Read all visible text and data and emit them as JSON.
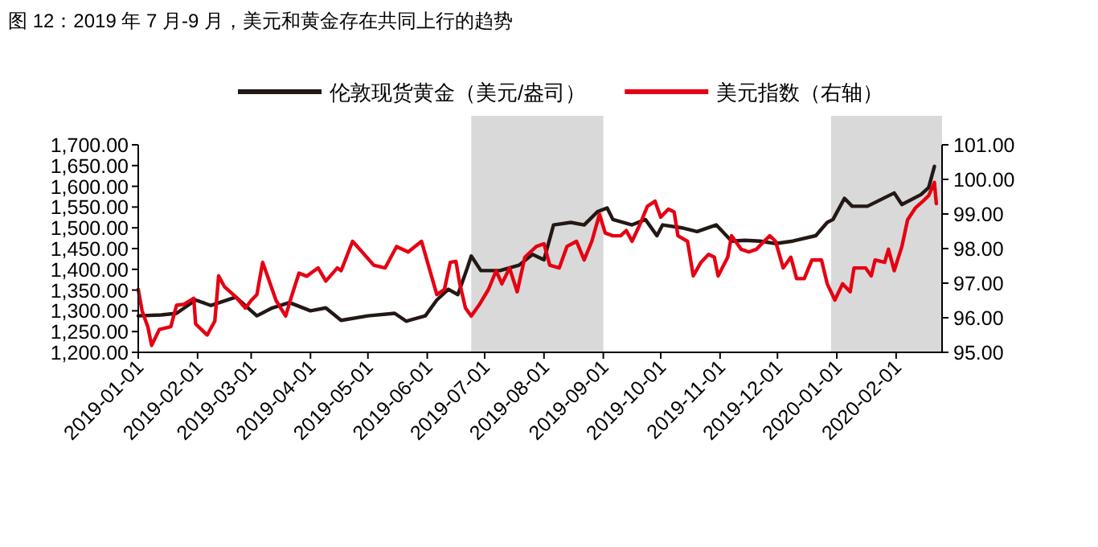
{
  "chart_data": {
    "type": "line",
    "title": "图 12：2019 年 7 月-9 月，美元和黄金存在共同上行的趋势",
    "legend": "top",
    "grid": false,
    "xlim": [
      "2019-01-01",
      "2020-02-25"
    ],
    "xticks": [
      "2019-01-01",
      "2019-02-01",
      "2019-03-01",
      "2019-04-01",
      "2019-05-01",
      "2019-06-01",
      "2019-07-01",
      "2019-08-01",
      "2019-09-01",
      "2019-10-01",
      "2019-11-01",
      "2019-12-01",
      "2020-01-01",
      "2020-02-01"
    ],
    "ylim": [
      1200,
      1700
    ],
    "yticks": [
      {
        "value": 1200,
        "label": "1,200.00"
      },
      {
        "value": 1250,
        "label": "1,250.00"
      },
      {
        "value": 1300,
        "label": "1,300.00"
      },
      {
        "value": 1350,
        "label": "1,350.00"
      },
      {
        "value": 1400,
        "label": "1,400.00"
      },
      {
        "value": 1450,
        "label": "1,450.00"
      },
      {
        "value": 1500,
        "label": "1,500.00"
      },
      {
        "value": 1550,
        "label": "1,550.00"
      },
      {
        "value": 1600,
        "label": "1,600.00"
      },
      {
        "value": 1650,
        "label": "1,650.00"
      },
      {
        "value": 1700,
        "label": "1,700.00"
      }
    ],
    "y2lim": [
      95,
      101
    ],
    "y2ticks": [
      {
        "value": 95,
        "label": "95.00"
      },
      {
        "value": 96,
        "label": "96.00"
      },
      {
        "value": 97,
        "label": "97.00"
      },
      {
        "value": 98,
        "label": "98.00"
      },
      {
        "value": 99,
        "label": "99.00"
      },
      {
        "value": 100,
        "label": "100.00"
      },
      {
        "value": 101,
        "label": "101.00"
      }
    ],
    "bands": [
      {
        "axis": "x",
        "from": "2019-06-24",
        "to": "2019-09-01",
        "color": "#d9d9d9"
      },
      {
        "axis": "x",
        "from": "2019-12-29",
        "to": "2020-02-25",
        "color": "#d9d9d9"
      }
    ],
    "series": [
      {
        "name": "伦敦现货黄金（美元/盎司）",
        "color": "#231815",
        "x": [
          "2019-01-01",
          "2019-01-13",
          "2019-01-21",
          "2019-01-31",
          "2019-02-08",
          "2019-02-21",
          "2019-03-01",
          "2019-03-04",
          "2019-03-12",
          "2019-03-21",
          "2019-04-01",
          "2019-04-09",
          "2019-04-17",
          "2019-05-01",
          "2019-05-15",
          "2019-05-21",
          "2019-05-31",
          "2019-06-06",
          "2019-06-12",
          "2019-06-17",
          "2019-06-22",
          "2019-06-24",
          "2019-06-29",
          "2019-07-09",
          "2019-07-19",
          "2019-07-26",
          "2019-08-01",
          "2019-08-06",
          "2019-08-15",
          "2019-08-22",
          "2019-08-29",
          "2019-09-03",
          "2019-09-06",
          "2019-09-16",
          "2019-09-23",
          "2019-09-29",
          "2019-10-02",
          "2019-10-12",
          "2019-10-20",
          "2019-10-30",
          "2019-11-07",
          "2019-11-14",
          "2019-11-22",
          "2019-11-30",
          "2019-12-09",
          "2019-12-21",
          "2019-12-27",
          "2019-12-30",
          "2020-01-05",
          "2020-01-09",
          "2020-01-17",
          "2020-01-31",
          "2020-02-04",
          "2020-02-14",
          "2020-02-18",
          "2020-02-21"
        ],
        "values": [
          1288,
          1290,
          1294,
          1326,
          1313,
          1333,
          1300,
          1288,
          1307,
          1320,
          1300,
          1307,
          1277,
          1288,
          1294,
          1275,
          1288,
          1326,
          1352,
          1339,
          1404,
          1432,
          1397,
          1397,
          1410,
          1436,
          1423,
          1507,
          1513,
          1507,
          1539,
          1548,
          1520,
          1507,
          1520,
          1481,
          1507,
          1500,
          1491,
          1507,
          1468,
          1470,
          1468,
          1462,
          1468,
          1481,
          1513,
          1520,
          1571,
          1552,
          1552,
          1584,
          1556,
          1580,
          1597,
          1648
        ]
      },
      {
        "name": "美元指数（右轴）",
        "color": "#e60012",
        "axis": "y2",
        "x": [
          "2019-01-01",
          "2019-01-03",
          "2019-01-06",
          "2019-01-08",
          "2019-01-12",
          "2019-01-18",
          "2019-01-21",
          "2019-01-25",
          "2019-01-30",
          "2019-01-31",
          "2019-02-06",
          "2019-02-10",
          "2019-02-12",
          "2019-02-15",
          "2019-02-21",
          "2019-02-26",
          "2019-03-01",
          "2019-03-04",
          "2019-03-07",
          "2019-03-09",
          "2019-03-14",
          "2019-03-19",
          "2019-03-22",
          "2019-03-26",
          "2019-03-30",
          "2019-04-05",
          "2019-04-09",
          "2019-04-15",
          "2019-04-17",
          "2019-04-23",
          "2019-04-28",
          "2019-05-04",
          "2019-05-10",
          "2019-05-16",
          "2019-05-22",
          "2019-05-29",
          "2019-06-02",
          "2019-06-06",
          "2019-06-10",
          "2019-06-13",
          "2019-06-16",
          "2019-06-18",
          "2019-06-21",
          "2019-06-24",
          "2019-06-28",
          "2019-07-03",
          "2019-07-07",
          "2019-07-10",
          "2019-07-14",
          "2019-07-18",
          "2019-07-22",
          "2019-07-28",
          "2019-08-01",
          "2019-08-04",
          "2019-08-09",
          "2019-08-13",
          "2019-08-18",
          "2019-08-22",
          "2019-08-26",
          "2019-08-30",
          "2019-09-02",
          "2019-09-06",
          "2019-09-10",
          "2019-09-13",
          "2019-09-16",
          "2019-09-20",
          "2019-09-24",
          "2019-09-28",
          "2019-10-01",
          "2019-10-05",
          "2019-10-08",
          "2019-10-10",
          "2019-10-15",
          "2019-10-18",
          "2019-10-22",
          "2019-10-26",
          "2019-10-29",
          "2019-10-31",
          "2019-11-05",
          "2019-11-07",
          "2019-11-12",
          "2019-11-16",
          "2019-11-20",
          "2019-11-24",
          "2019-11-27",
          "2019-11-30",
          "2019-12-04",
          "2019-12-08",
          "2019-12-11",
          "2019-12-15",
          "2019-12-19",
          "2019-12-24",
          "2019-12-27",
          "2019-12-31",
          "2020-01-04",
          "2020-01-08",
          "2020-01-10",
          "2020-01-16",
          "2020-01-19",
          "2020-01-21",
          "2020-01-26",
          "2020-01-28",
          "2020-01-31",
          "2020-02-04",
          "2020-02-07",
          "2020-02-11",
          "2020-02-15",
          "2020-02-18",
          "2020-02-21",
          "2020-02-22"
        ],
        "values": [
          96.82,
          96.2,
          95.74,
          95.2,
          95.66,
          95.74,
          96.36,
          96.39,
          96.56,
          95.82,
          95.5,
          95.9,
          97.21,
          96.9,
          96.6,
          96.28,
          96.5,
          96.67,
          97.6,
          97.29,
          96.5,
          96.05,
          96.6,
          97.29,
          97.2,
          97.44,
          97.06,
          97.44,
          97.36,
          98.21,
          97.9,
          97.52,
          97.44,
          98.06,
          97.9,
          98.21,
          97.44,
          96.67,
          96.82,
          97.6,
          97.63,
          96.98,
          96.28,
          96.05,
          96.36,
          96.82,
          97.36,
          96.98,
          97.44,
          96.75,
          97.75,
          98.06,
          98.14,
          97.52,
          97.44,
          98.06,
          98.21,
          97.67,
          98.21,
          98.99,
          98.45,
          98.37,
          98.37,
          98.52,
          98.21,
          98.68,
          99.22,
          99.37,
          98.91,
          99.14,
          99.06,
          98.37,
          98.21,
          97.21,
          97.6,
          97.83,
          97.75,
          97.21,
          97.75,
          98.37,
          97.98,
          97.9,
          97.98,
          98.21,
          98.37,
          98.21,
          97.44,
          97.75,
          97.13,
          97.13,
          97.67,
          97.67,
          96.98,
          96.51,
          96.98,
          96.75,
          97.44,
          97.44,
          97.21,
          97.67,
          97.6,
          97.98,
          97.36,
          98.06,
          98.83,
          99.17,
          99.37,
          99.53,
          99.91,
          99.3
        ]
      }
    ]
  }
}
